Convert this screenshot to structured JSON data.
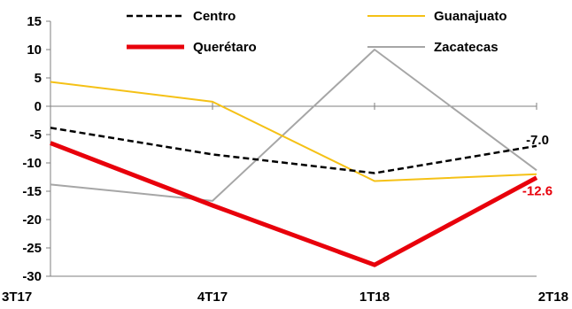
{
  "chart_data": {
    "type": "line",
    "title": "",
    "xlabel": "",
    "ylabel": "",
    "categories": [
      "3T17",
      "4T17",
      "1T18",
      "2T18"
    ],
    "ylim": [
      -30,
      15
    ],
    "yticks": [
      15,
      10,
      5,
      0,
      -5,
      -10,
      -15,
      -20,
      -25,
      -30
    ],
    "grid": false,
    "legend": "top",
    "series": [
      {
        "name": "Centro",
        "values": [
          -3.8,
          -8.5,
          -11.8,
          -7.0
        ],
        "color": "#000000",
        "style": "dashed",
        "end_label": "-7.0",
        "label_color": "#000000"
      },
      {
        "name": "Guanajuato",
        "values": [
          4.3,
          0.8,
          -13.2,
          -12.0
        ],
        "color": "#f5c116",
        "style": "solid"
      },
      {
        "name": "Querétaro",
        "values": [
          -6.5,
          -17.5,
          -28.0,
          -12.6
        ],
        "color": "#e8000b",
        "style": "solid-thick",
        "end_label": "-12.6",
        "label_color": "#e8000b"
      },
      {
        "name": "Zacatecas",
        "values": [
          -13.8,
          -16.7,
          10.0,
          -11.3
        ],
        "color": "#a6a6a6",
        "style": "solid"
      }
    ]
  }
}
